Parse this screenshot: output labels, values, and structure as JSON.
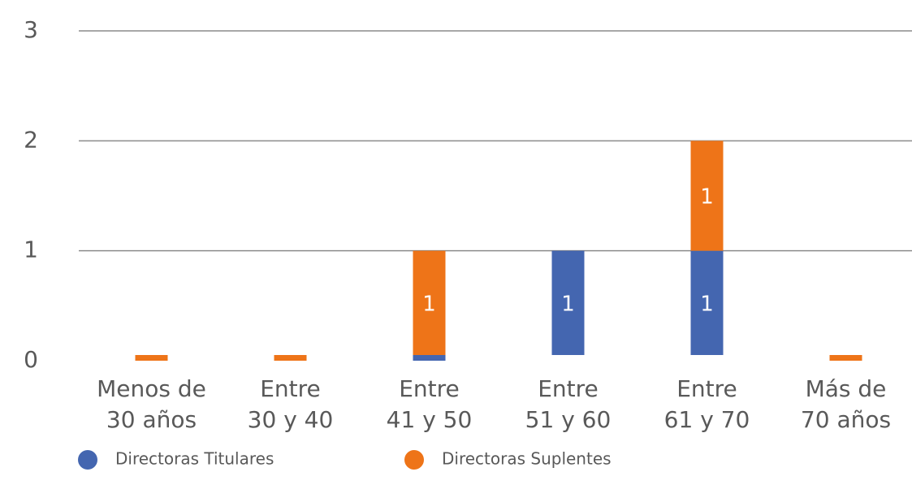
{
  "chart_data": {
    "type": "stacked_bar",
    "categories": [
      [
        "Menos de",
        "30 años"
      ],
      [
        "Entre",
        "30 y 40"
      ],
      [
        "Entre",
        "41 y 50"
      ],
      [
        "Entre",
        "51 y 60"
      ],
      [
        "Entre",
        "61 y 70"
      ],
      [
        "Más de",
        "70 años"
      ]
    ],
    "series": [
      {
        "name": "Directoras Titulares",
        "color": "#4466b0",
        "values": [
          0,
          0,
          0,
          1,
          1,
          0
        ]
      },
      {
        "name": "Directoras Suplentes",
        "color": "#ee7418",
        "values": [
          0,
          0,
          1,
          0,
          1,
          0
        ]
      }
    ],
    "ylim": [
      0,
      3
    ],
    "yticks": [
      0,
      1,
      2,
      3
    ],
    "grid": true,
    "legend": "bottom"
  }
}
